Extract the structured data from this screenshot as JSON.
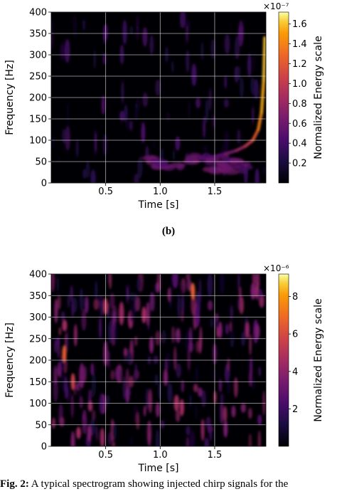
{
  "figure": {
    "subfigure_label": "(b)",
    "caption_label": "Fig. 2:",
    "caption_text": "A typical spectrogram showing injected chirp signals for the"
  },
  "chart_data": [
    {
      "type": "heatmap",
      "title": "",
      "xlabel": "Time [s]",
      "ylabel": "Frequency [Hz]",
      "xlim": [
        0.0,
        1.97
      ],
      "ylim": [
        0,
        400
      ],
      "x_ticks": [
        0.5,
        1.0,
        1.5
      ],
      "x_tick_labels": [
        "0.5",
        "1.0",
        "1.5"
      ],
      "y_ticks": [
        0,
        50,
        100,
        150,
        200,
        250,
        300,
        350,
        400
      ],
      "y_tick_labels": [
        "0",
        "50",
        "100",
        "150",
        "200",
        "250",
        "300",
        "350",
        "400"
      ],
      "grid": true,
      "colormap": "inferno",
      "colorbar": {
        "label": "Normalized Energy scale",
        "exponent_label": "×10⁻⁷",
        "range": [
          0.0,
          1.72
        ],
        "ticks": [
          0.2,
          0.4,
          0.6,
          0.8,
          1.0,
          1.2,
          1.4,
          1.6
        ],
        "tick_labels": [
          "0.2",
          "0.4",
          "0.6",
          "0.8",
          "1.0",
          "1.2",
          "1.4",
          "1.6"
        ]
      },
      "chirp_track": {
        "time": [
          1.45,
          1.6,
          1.7,
          1.78,
          1.85,
          1.9,
          1.93,
          1.95,
          1.96
        ],
        "frequency": [
          60,
          68,
          76,
          86,
          100,
          125,
          165,
          240,
          340
        ],
        "energy": [
          0.5,
          0.65,
          0.8,
          1.0,
          1.2,
          1.4,
          1.55,
          1.6,
          1.65
        ]
      }
    },
    {
      "type": "heatmap",
      "title": "",
      "xlabel": "Time [s]",
      "ylabel": "Frequency [Hz]",
      "xlim": [
        0.0,
        1.97
      ],
      "ylim": [
        0,
        400
      ],
      "x_ticks": [
        0.5,
        1.0,
        1.5
      ],
      "x_tick_labels": [
        "0.5",
        "1.0",
        "1.5"
      ],
      "y_ticks": [
        0,
        50,
        100,
        150,
        200,
        250,
        300,
        350,
        400
      ],
      "y_tick_labels": [
        "0",
        "50",
        "100",
        "150",
        "200",
        "250",
        "300",
        "350",
        "400"
      ],
      "grid": true,
      "colormap": "inferno",
      "colorbar": {
        "label": "Normalized Energy scale",
        "exponent_label": "×10⁻⁶",
        "range": [
          0.0,
          9.2
        ],
        "ticks": [
          2,
          4,
          6,
          8
        ],
        "tick_labels": [
          "2",
          "4",
          "6",
          "8"
        ]
      },
      "hot_spots": [
        {
          "time": 0.12,
          "frequency": 215,
          "energy": 6.5
        },
        {
          "time": 0.2,
          "frequency": 150,
          "energy": 5.5
        },
        {
          "time": 0.5,
          "frequency": 325,
          "energy": 5.0
        },
        {
          "time": 0.85,
          "frequency": 305,
          "energy": 4.5
        },
        {
          "time": 0.92,
          "frequency": 235,
          "energy": 3.5
        },
        {
          "time": 1.05,
          "frequency": 160,
          "energy": 3.5
        },
        {
          "time": 1.2,
          "frequency": 90,
          "energy": 4.5
        },
        {
          "time": 1.3,
          "frequency": 360,
          "energy": 6.5
        },
        {
          "time": 1.55,
          "frequency": 270,
          "energy": 3.5
        },
        {
          "time": 1.8,
          "frequency": 270,
          "energy": 4.0
        },
        {
          "time": 1.85,
          "frequency": 360,
          "energy": 3.5
        },
        {
          "time": 0.35,
          "frequency": 30,
          "energy": 3.5
        },
        {
          "time": 1.6,
          "frequency": 40,
          "energy": 3.5
        },
        {
          "time": 0.7,
          "frequency": 120,
          "energy": 3.0
        }
      ]
    }
  ]
}
